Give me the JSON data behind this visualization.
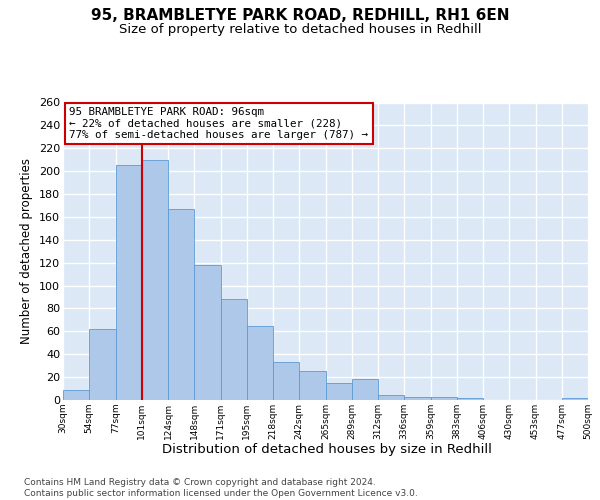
{
  "title1": "95, BRAMBLETYE PARK ROAD, REDHILL, RH1 6EN",
  "title2": "Size of property relative to detached houses in Redhill",
  "xlabel": "Distribution of detached houses by size in Redhill",
  "ylabel": "Number of detached properties",
  "footer1": "Contains HM Land Registry data © Crown copyright and database right 2024.",
  "footer2": "Contains public sector information licensed under the Open Government Licence v3.0.",
  "bin_edges": [
    "30sqm",
    "54sqm",
    "77sqm",
    "101sqm",
    "124sqm",
    "148sqm",
    "171sqm",
    "195sqm",
    "218sqm",
    "242sqm",
    "265sqm",
    "289sqm",
    "312sqm",
    "336sqm",
    "359sqm",
    "383sqm",
    "406sqm",
    "430sqm",
    "453sqm",
    "477sqm",
    "500sqm"
  ],
  "bar_heights": [
    9,
    62,
    205,
    210,
    167,
    118,
    88,
    65,
    33,
    25,
    15,
    18,
    4,
    3,
    3,
    2,
    0,
    0,
    0,
    2
  ],
  "bar_color": "#adc8e8",
  "bar_edge_color": "#5b9bd5",
  "vline_position": 2.0,
  "vline_color": "#cc0000",
  "annotation_text": "95 BRAMBLETYE PARK ROAD: 96sqm\n← 22% of detached houses are smaller (228)\n77% of semi-detached houses are larger (787) →",
  "ylim_max": 260,
  "yticks": [
    0,
    20,
    40,
    60,
    80,
    100,
    120,
    140,
    160,
    180,
    200,
    220,
    240,
    260
  ],
  "bg_color": "#dce8f5",
  "grid_color": "white",
  "title1_fontsize": 11,
  "title2_fontsize": 9.5,
  "ylabel_fontsize": 8.5,
  "xlabel_fontsize": 9.5,
  "footer_fontsize": 6.5
}
